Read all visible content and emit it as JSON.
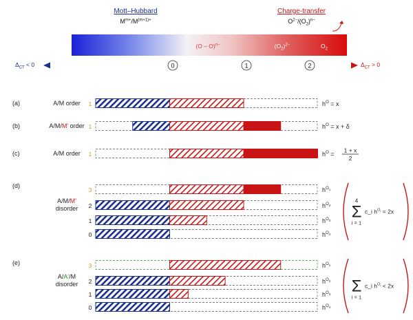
{
  "header": {
    "mott_hubbard_title": "Mott–Hubbard",
    "mott_hubbard_formula": "M^{m+}/M^{(m+1)+}",
    "charge_transfer_title": "Charge-transfer",
    "charge_transfer_formula": "O^{2−}/(O_2)^{n−}",
    "gradient_labels": [
      "(O – O)^{n−}",
      "(O_2)^{2−}",
      "O_2"
    ]
  },
  "axis": {
    "left_label": "Δ_{CT} < 0",
    "right_label": "Δ_{CT} > 0",
    "ticks": [
      "0",
      "1",
      "2"
    ]
  },
  "colors": {
    "blue": "#1a2e8c",
    "red": "#c81414",
    "green": "#2e8b2e",
    "gold": "#c8a020"
  },
  "panels": [
    {
      "letter": "(a)",
      "label_parts": [
        {
          "t": "A/M order",
          "c": "k"
        }
      ],
      "rows": [
        {
          "num": "1",
          "num_color": "gold",
          "blue_hatch": [
            0,
            1
          ],
          "red_hatch": [
            1,
            2
          ],
          "red_solid": null,
          "outline": "k",
          "eq": "h^{O} = x"
        }
      ]
    },
    {
      "letter": "(b)",
      "label_parts": [
        {
          "t": "A/M/",
          "c": "k"
        },
        {
          "t": "M'",
          "c": "red"
        },
        {
          "t": " order",
          "c": "k"
        }
      ],
      "rows": [
        {
          "num": "1",
          "num_color": "gold",
          "blue_hatch": [
            0.5,
            1
          ],
          "red_hatch": [
            1,
            2
          ],
          "red_solid": [
            2,
            2.5
          ],
          "outline": "k",
          "eq": "h^{O} = x + δ"
        }
      ]
    },
    {
      "letter": "(c)",
      "label_parts": [
        {
          "t": "A/M order",
          "c": "k"
        }
      ],
      "rows": [
        {
          "num": "1",
          "num_color": "gold",
          "blue_hatch": null,
          "red_hatch": [
            1,
            2
          ],
          "red_solid": [
            2,
            3
          ],
          "outline": "k",
          "eq": "h^{O} = (1 + x)/2"
        }
      ]
    },
    {
      "letter": "(d)",
      "label_parts": [
        {
          "t": "A/M/",
          "c": "k"
        },
        {
          "t": "M'",
          "c": "red"
        },
        {
          "t": " disorder",
          "c": "k"
        }
      ],
      "rows": [
        {
          "num": "3",
          "num_color": "gold",
          "blue_hatch": null,
          "red_hatch": [
            1,
            2
          ],
          "red_solid": [
            2,
            2.5
          ],
          "outline": "k",
          "eq": "h^{O_1}"
        },
        {
          "num": "2",
          "num_color": "k",
          "blue_hatch": [
            0,
            1
          ],
          "red_hatch": [
            1,
            2
          ],
          "red_solid": null,
          "outline": "k",
          "eq": "h^{O_2}"
        },
        {
          "num": "1",
          "num_color": "k",
          "blue_hatch": [
            0,
            1
          ],
          "red_hatch": [
            1,
            1.5
          ],
          "red_solid": null,
          "outline": "k",
          "eq": "h^{O_3}"
        },
        {
          "num": "0",
          "num_color": "k",
          "blue_hatch": [
            0,
            1
          ],
          "red_hatch": null,
          "red_solid": null,
          "outline": "k",
          "eq": "h^{O_4}"
        }
      ],
      "sum": {
        "upper": "4",
        "lower": "i = 1",
        "term": "c_i h^{O_i} = 2x"
      }
    },
    {
      "letter": "(e)",
      "label_parts": [
        {
          "t": "A/",
          "c": "k"
        },
        {
          "t": "A'",
          "c": "green"
        },
        {
          "t": "/M",
          "c": "k"
        },
        {
          "t": "\ndisorder",
          "c": "k"
        }
      ],
      "rows": [
        {
          "num": "3",
          "num_color": "gold",
          "blue_hatch": null,
          "red_hatch": [
            1,
            2.5
          ],
          "red_solid": null,
          "outline": "green",
          "eq": "h^{O_1}"
        },
        {
          "num": "2",
          "num_color": "k",
          "blue_hatch": [
            0,
            1
          ],
          "red_hatch": [
            1,
            1.75
          ],
          "red_solid": null,
          "outline": "k",
          "eq": "h^{O_2}"
        },
        {
          "num": "1",
          "num_color": "k",
          "blue_hatch": [
            0,
            1
          ],
          "red_hatch": [
            1,
            1.25
          ],
          "red_solid": null,
          "outline": "k",
          "eq": "h^{O_3}"
        },
        {
          "num": "0",
          "num_color": "k",
          "blue_hatch": [
            0,
            1
          ],
          "red_hatch": null,
          "red_solid": null,
          "outline": "k",
          "eq": "h^{O_4}"
        }
      ],
      "sum": {
        "upper": "",
        "lower": "i = 1",
        "term": "c_i h^{O_i} < 2x"
      }
    }
  ]
}
